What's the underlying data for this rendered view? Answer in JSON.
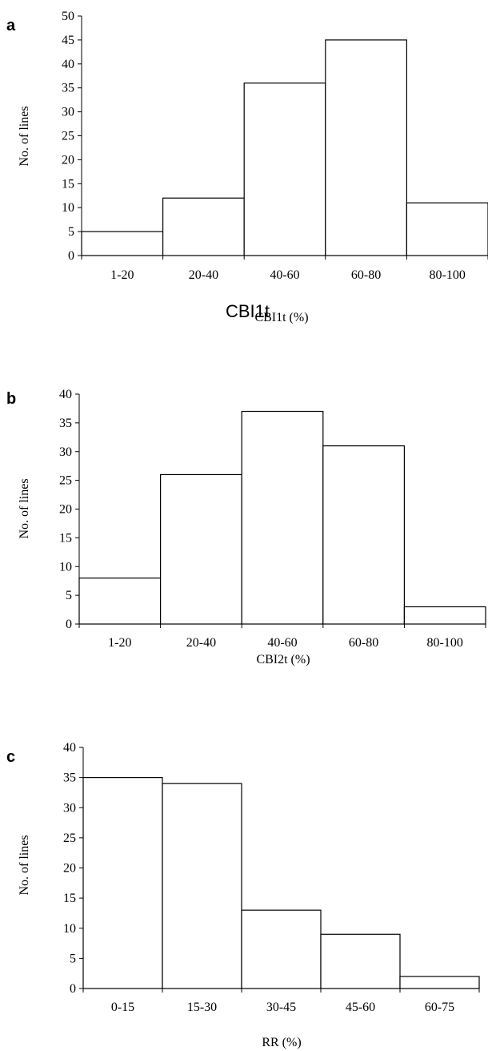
{
  "chart_data": [
    {
      "type": "bar",
      "panel_label": "a",
      "categories": [
        "1-20",
        "20-40",
        "40-60",
        "60-80",
        "80-100"
      ],
      "values": [
        5,
        12,
        36,
        45,
        11
      ],
      "xlabel": "CBI1t (%)",
      "xlabel_overlay": "CBI1t",
      "ylabel": "No. of lines",
      "ylim": [
        0,
        50
      ],
      "yticks": [
        "0",
        "5",
        "10",
        "15",
        "20",
        "25",
        "30",
        "35",
        "40",
        "45",
        "50"
      ],
      "grid": false,
      "legend": "none"
    },
    {
      "type": "bar",
      "panel_label": "b",
      "categories": [
        "1-20",
        "20-40",
        "40-60",
        "60-80",
        "80-100"
      ],
      "values": [
        8,
        26,
        37,
        31,
        3
      ],
      "xlabel": "CBI2t (%)",
      "ylabel": "No. of lines",
      "ylim": [
        0,
        40
      ],
      "yticks": [
        "0",
        "5",
        "10",
        "15",
        "20",
        "25",
        "30",
        "35",
        "40"
      ],
      "grid": false,
      "legend": "none"
    },
    {
      "type": "bar",
      "panel_label": "c",
      "categories": [
        "0-15",
        "15-30",
        "30-45",
        "45-60",
        "60-75"
      ],
      "values": [
        35,
        34,
        13,
        9,
        2
      ],
      "xlabel": "RR (%)",
      "ylabel": "No. of lines",
      "ylim": [
        0,
        40
      ],
      "yticks": [
        "0",
        "5",
        "10",
        "15",
        "20",
        "25",
        "30",
        "35",
        "40"
      ],
      "grid": false,
      "legend": "none"
    }
  ]
}
